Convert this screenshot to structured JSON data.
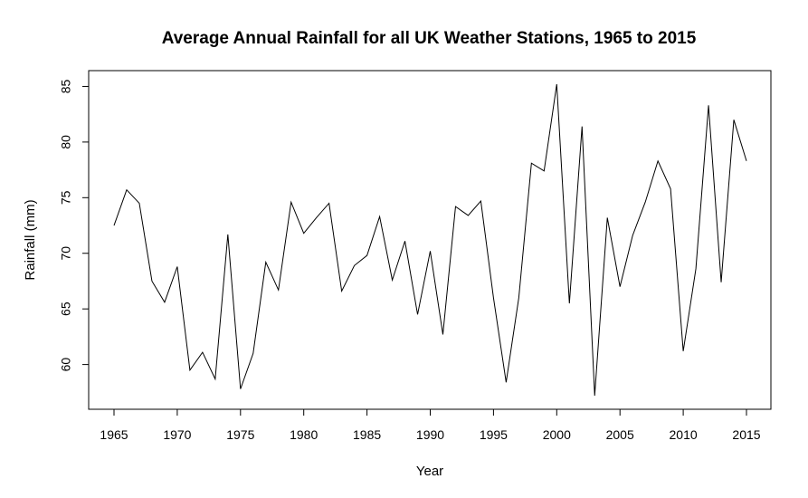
{
  "chart_data": {
    "type": "line",
    "title": "Average Annual Rainfall for all UK Weather Stations, 1965 to 2015",
    "xlabel": "Year",
    "ylabel": "Rainfall (mm)",
    "xlim": [
      1965,
      2015
    ],
    "ylim": [
      57.2,
      85.2
    ],
    "x_ticks": [
      "1965",
      "1970",
      "1975",
      "1980",
      "1985",
      "1990",
      "1995",
      "2000",
      "2005",
      "2010",
      "2015"
    ],
    "y_ticks": [
      "60",
      "65",
      "70",
      "75",
      "80",
      "85"
    ],
    "grid": false,
    "line_color": "#000000",
    "series": [
      {
        "x": [
          1965,
          1966,
          1967,
          1968,
          1969,
          1970,
          1971,
          1972,
          1973,
          1974,
          1975,
          1976,
          1977,
          1978,
          1979,
          1980,
          1981,
          1982,
          1983,
          1984,
          1985,
          1986,
          1987,
          1988,
          1989,
          1990,
          1991,
          1992,
          1993,
          1994,
          1995,
          1996,
          1997,
          1998,
          1999,
          2000,
          2001,
          2002,
          2003,
          2004,
          2005,
          2006,
          2007,
          2008,
          2009,
          2010,
          2011,
          2012,
          2013,
          2014,
          2015
        ],
        "values": [
          72.5,
          75.7,
          74.5,
          67.5,
          65.6,
          68.8,
          59.5,
          61.1,
          58.7,
          71.7,
          57.8,
          61.0,
          69.2,
          66.7,
          74.6,
          71.8,
          73.2,
          74.5,
          66.6,
          68.9,
          69.8,
          73.3,
          67.6,
          71.1,
          64.5,
          70.2,
          62.7,
          74.2,
          73.4,
          74.7,
          66.0,
          58.4,
          66.0,
          78.1,
          77.4,
          85.2,
          65.5,
          81.4,
          57.2,
          73.2,
          67.0,
          71.6,
          74.6,
          78.3,
          75.8,
          61.2,
          68.6,
          83.3,
          67.4,
          82.0,
          78.3
        ]
      }
    ]
  }
}
